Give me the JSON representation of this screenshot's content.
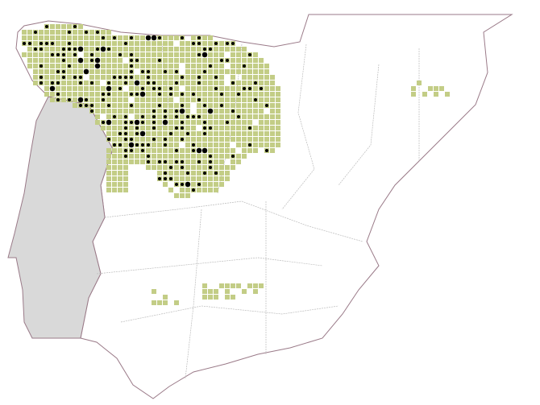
{
  "map": {
    "colors": {
      "background": "#ffffff",
      "coastline": "#9a7a88",
      "province_border": "#b8b8b8",
      "portugal_fill": "#d9d9d9",
      "presence_square": "#c3cd86",
      "record_dot": "#000000"
    }
  }
}
